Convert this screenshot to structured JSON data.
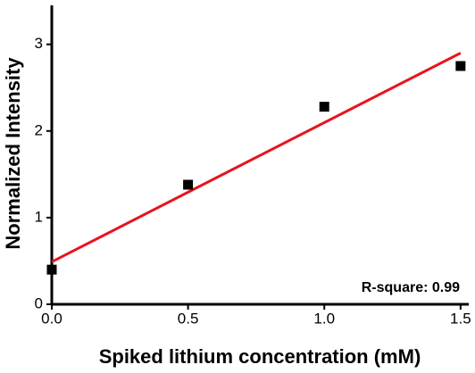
{
  "chart_data": {
    "type": "scatter",
    "x_label": "Spiked lithium concentration (mM)",
    "y_label": "Normalized Intensity",
    "annotation": "R-square: 0.99",
    "x": [
      0,
      0.5,
      1.0,
      1.5
    ],
    "series": [
      {
        "color": "#000000",
        "values": [
          0.4,
          1.38,
          2.28,
          2.75
        ]
      }
    ],
    "fit": {
      "type": "line",
      "color": "#e8141c",
      "x": [
        0,
        1.5
      ],
      "values": [
        0.49,
        2.9
      ]
    },
    "xlim": [
      0,
      1.53
    ],
    "xticks": [
      {
        "value": 0,
        "label": "0.0"
      },
      0.5,
      {
        "value": 1,
        "label": "1.0"
      },
      1.5
    ],
    "ylim": [
      0,
      3.45
    ],
    "yticks": [
      0,
      1,
      2,
      3
    ]
  }
}
